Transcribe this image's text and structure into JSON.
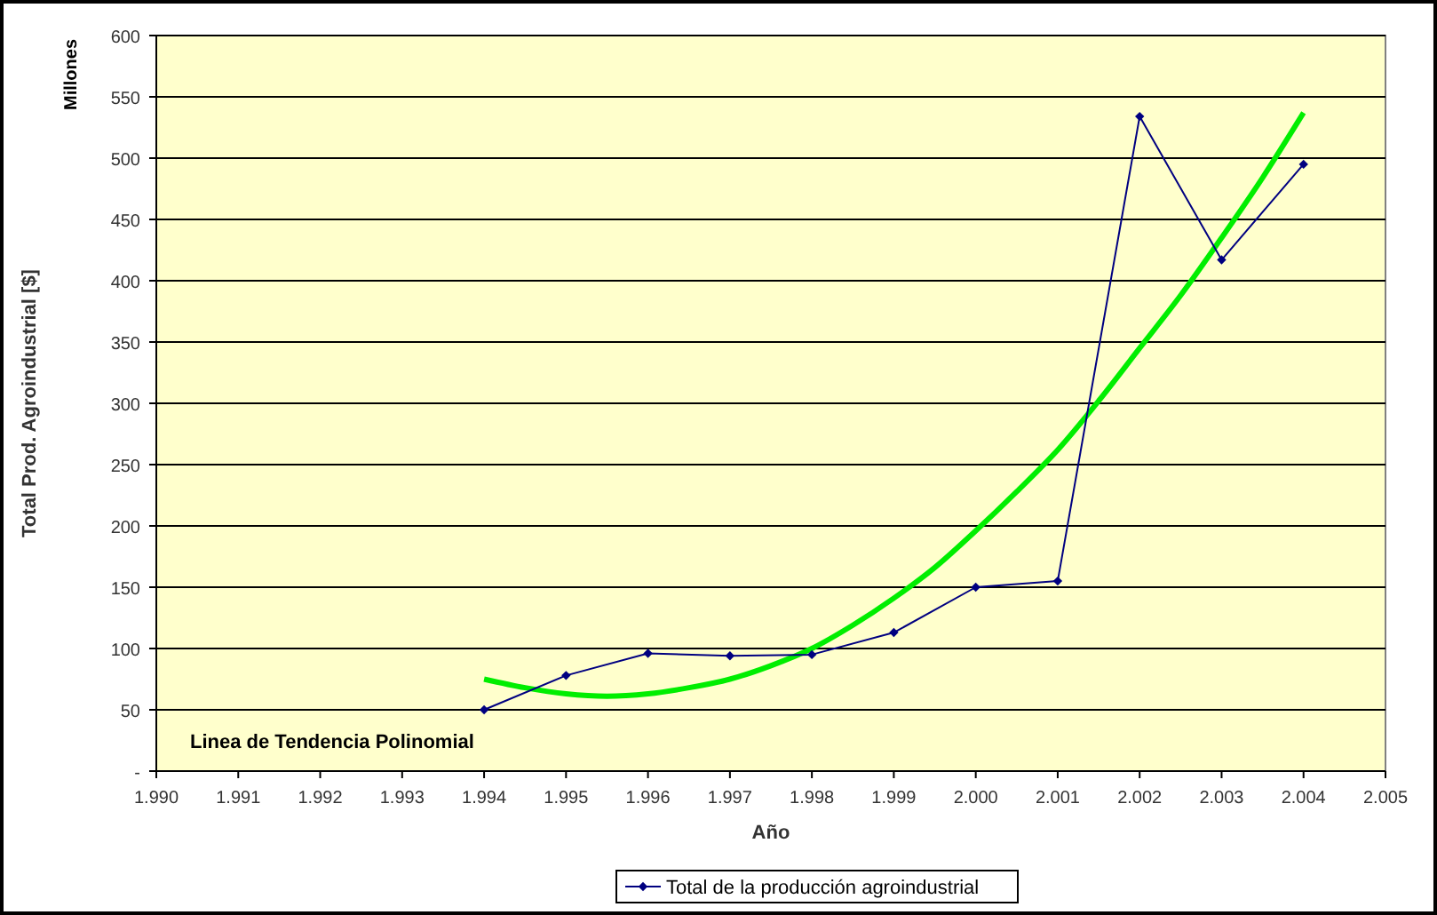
{
  "chart_data": {
    "type": "line",
    "xlabel": "Año",
    "ylabel": "Total Prod. Agroindustrial [$]",
    "annotations": [
      "Millones",
      "Linea de Tendencia Polinomial"
    ],
    "xlim": [
      1990,
      2005
    ],
    "xticks": [
      {
        "value": 1990,
        "label": "1.990"
      },
      {
        "value": 1991,
        "label": "1.991"
      },
      {
        "value": 1992,
        "label": "1.992"
      },
      {
        "value": 1993,
        "label": "1.993"
      },
      {
        "value": 1994,
        "label": "1.994"
      },
      {
        "value": 1995,
        "label": "1.995"
      },
      {
        "value": 1996,
        "label": "1.996"
      },
      {
        "value": 1997,
        "label": "1.997"
      },
      {
        "value": 1998,
        "label": "1.998"
      },
      {
        "value": 1999,
        "label": "1.999"
      },
      {
        "value": 2000,
        "label": "2.000"
      },
      {
        "value": 2001,
        "label": "2.001"
      },
      {
        "value": 2002,
        "label": "2.002"
      },
      {
        "value": 2003,
        "label": "2.003"
      },
      {
        "value": 2004,
        "label": "2.004"
      },
      {
        "value": 2005,
        "label": "2.005"
      }
    ],
    "ylim": [
      0,
      600
    ],
    "yticks": [
      {
        "value": 0,
        "label": "-"
      },
      50,
      100,
      150,
      200,
      250,
      300,
      350,
      400,
      450,
      500,
      550,
      600
    ],
    "grid": "y",
    "legend": "bottom",
    "series": [
      {
        "name": "Total de la producción agroindustrial",
        "color": "#000080",
        "marker": "diamond",
        "x": [
          1994,
          1995,
          1996,
          1997,
          1998,
          1999,
          2000,
          2001,
          2002,
          2003,
          2004
        ],
        "values": [
          50,
          78,
          96,
          94,
          95,
          113,
          150,
          155,
          534,
          417,
          495
        ]
      },
      {
        "color": "#00ee00",
        "marker": "none",
        "x": [
          1994,
          1994.5,
          1995,
          1995.5,
          1996,
          1996.5,
          1997,
          1997.5,
          1998,
          1998.5,
          1999,
          1999.5,
          2000,
          2000.5,
          2001,
          2001.5,
          2002,
          2002.5,
          2003,
          2003.5,
          2004
        ],
        "values": [
          75,
          68,
          63,
          61,
          63,
          68,
          75,
          86,
          100,
          119,
          141,
          166,
          196,
          228,
          262,
          302,
          345,
          388,
          435,
          484,
          537
        ]
      }
    ]
  }
}
